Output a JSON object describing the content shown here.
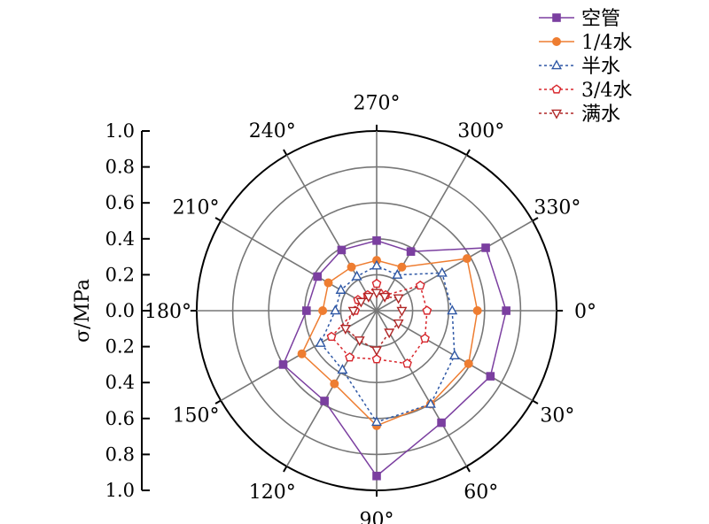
{
  "chart_data": {
    "type": "polar-line",
    "angle_unit": "°",
    "theta_zero": "east",
    "theta_direction": "clockwise",
    "angle_ticks": [
      0,
      30,
      60,
      90,
      120,
      150,
      180,
      210,
      240,
      270,
      300,
      330
    ],
    "angle_tick_labels": [
      "0°",
      "30°",
      "60°",
      "90°",
      "120°",
      "150°",
      "180°",
      "210°",
      "240°",
      "270°",
      "300°",
      "330°"
    ],
    "radial_range": [
      0,
      1.0
    ],
    "radial_ticks": [
      0.2,
      0.4,
      0.6,
      0.8,
      1.0
    ],
    "radial_axis_label": "σ/MPa",
    "radial_axis_ticks": [
      "1.0",
      "0.8",
      "0.6",
      "0.4",
      "0.2",
      "0.0",
      "0.2",
      "0.4",
      "0.6",
      "0.8",
      "1.0"
    ],
    "grid": true,
    "legend_position": "top-right",
    "angles": [
      0,
      30,
      60,
      90,
      120,
      150,
      180,
      210,
      240,
      270,
      300,
      330
    ],
    "series": [
      {
        "name": "空管",
        "color": "#7b3fa0",
        "dash": "solid",
        "marker": "square",
        "filled": true,
        "values": [
          0.72,
          0.73,
          0.72,
          0.92,
          0.58,
          0.6,
          0.39,
          0.38,
          0.39,
          0.39,
          0.38,
          0.7
        ]
      },
      {
        "name": "1/4水",
        "color": "#ee7d31",
        "dash": "solid",
        "marker": "circle",
        "filled": true,
        "values": [
          0.56,
          0.59,
          0.6,
          0.64,
          0.47,
          0.48,
          0.3,
          0.31,
          0.28,
          0.28,
          0.28,
          0.58
        ]
      },
      {
        "name": "半水",
        "color": "#2e57a5",
        "dash": "dotted",
        "marker": "triangle-up",
        "filled": false,
        "values": [
          0.42,
          0.5,
          0.6,
          0.62,
          0.38,
          0.36,
          0.23,
          0.23,
          0.22,
          0.25,
          0.23,
          0.42
        ]
      },
      {
        "name": "3/4水",
        "color": "#d8262c",
        "dash": "dotted",
        "marker": "pentagon",
        "filled": false,
        "values": [
          0.28,
          0.31,
          0.34,
          0.27,
          0.3,
          0.29,
          0.12,
          0.12,
          0.1,
          0.15,
          0.1,
          0.28
        ]
      },
      {
        "name": "满水",
        "color": "#b02626",
        "dash": "dotted",
        "marker": "triangle-down",
        "filled": false,
        "values": [
          0.14,
          0.14,
          0.14,
          0.22,
          0.19,
          0.2,
          0.13,
          0.1,
          0.09,
          0.1,
          0.09,
          0.14
        ]
      }
    ]
  }
}
